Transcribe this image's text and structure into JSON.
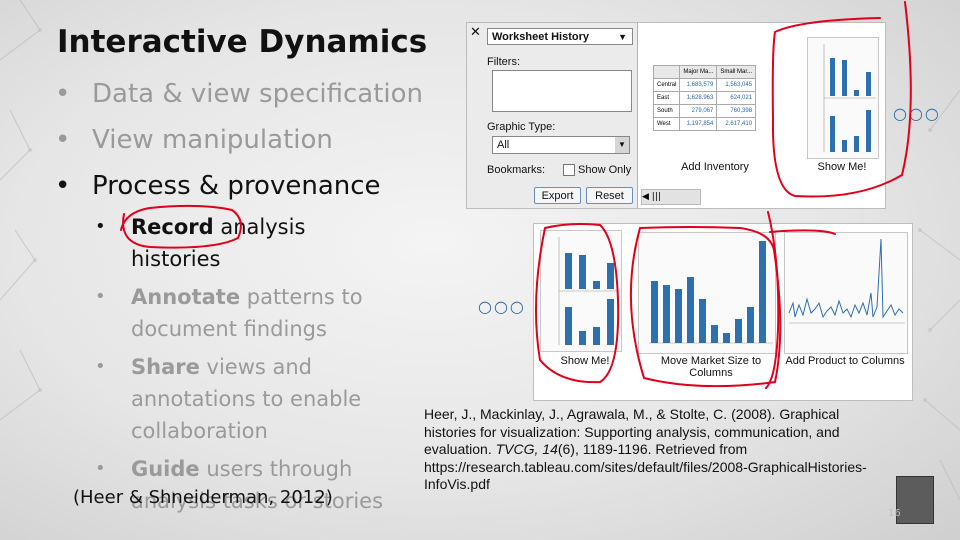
{
  "title": "Interactive Dynamics",
  "bullets": [
    "Data & view specification",
    "View manipulation",
    "Process & provenance"
  ],
  "sub_bullets": [
    {
      "bold": "Record",
      "rest": " analysis histories"
    },
    {
      "bold": "Annotate",
      "rest": " patterns to document findings"
    },
    {
      "bold": "Share",
      "rest": " views and annotations to enable collaboration"
    },
    {
      "bold": "Guide",
      "rest": " users through analysis tasks or stories"
    }
  ],
  "citation": "(Heer & Shneiderman, 2012)",
  "reference": {
    "authors": "Heer, J., Mackinlay, J., Agrawala, M., & Stolte, C. (2008). Graphical histories for visualization: Supporting analysis, communication, and evaluation. ",
    "journal": "TVCG, 14",
    "details": "(6), 1189-1196. Retrieved from https://research.tableau.com/sites/default/files/2008-GraphicalHistories-InfoVis.pdf"
  },
  "history_panel": {
    "close": "✕",
    "dropdown": "Worksheet History",
    "filters_label": "Filters:",
    "graphic_type_label": "Graphic Type:",
    "graphic_type_value": "All",
    "bookmarks_label": "Bookmarks:",
    "show_only_label": "Show Only",
    "export_label": "Export",
    "reset_label": "Reset"
  },
  "inventory_table": {
    "headers": [
      "",
      "Major Ma...",
      "Small Mar..."
    ],
    "rows": [
      [
        "Central",
        "1,683,579",
        "1,563,045"
      ],
      [
        "East",
        "1,628,963",
        "624,021"
      ],
      [
        "South",
        "279,067",
        "760,398"
      ],
      [
        "West",
        "1,197,854",
        "2,617,410"
      ]
    ]
  },
  "thumb_labels": {
    "add_inventory": "Add Inventory",
    "show_me_top": "Show Me!",
    "show_me_bottom": "Show Me!",
    "move_market": "Move Market Size to Columns",
    "add_product": "Add Product to Columns"
  },
  "ellipsis": "○○○",
  "slide_number": "16",
  "colors": {
    "bar": "#2e6fae",
    "ink": "#e0001b",
    "title": "#111111",
    "muted": "#9a9a9a"
  }
}
